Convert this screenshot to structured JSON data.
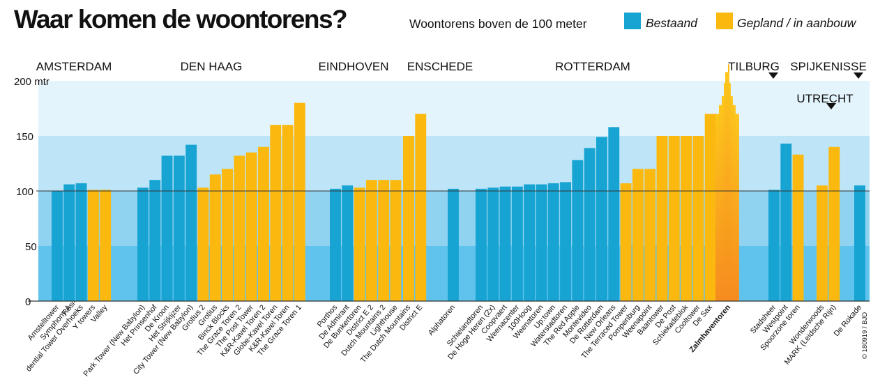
{
  "header": {
    "title": "Waar komen de woontorens?",
    "legend_label": "Woontorens boven de 100 meter"
  },
  "colors": {
    "existing": "#17a4d3",
    "planned": "#fbb90f",
    "band_top": "#e4f4fc",
    "band_mid": "#bde5f7",
    "band_low": "#8fd3f1",
    "band_bottom": "#5fc3ed",
    "highlight_top": "#fdc61c",
    "highlight_bottom": "#f68b1f"
  },
  "chart_data": {
    "type": "bar",
    "title": "Waar komen de woontorens?",
    "subtitle": "Woontorens boven de 100 meter",
    "ylabel": "",
    "ylim": [
      0,
      200
    ],
    "yticks": [
      "0",
      "50",
      "100",
      "150",
      "200 mtr"
    ],
    "grid": true,
    "legend_position": "top-right",
    "series": [
      {
        "name": "Bestaand",
        "key": "existing"
      },
      {
        "name": "Gepland / in aanbouw",
        "key": "planned"
      }
    ],
    "cities": [
      {
        "name": "AMSTERDAM",
        "marker": false,
        "buildings": [
          {
            "name": "Amstelltower",
            "value": 100,
            "status": "existing"
          },
          {
            "name": "Symphony A",
            "value": 106,
            "status": "existing"
          },
          {
            "name": "Resi-\ndential Tower Overhoeks",
            "value": 107,
            "status": "existing"
          },
          {
            "name": "Y towers",
            "value": 101,
            "status": "planned"
          },
          {
            "name": "Valley",
            "value": 101,
            "status": "planned"
          }
        ]
      },
      {
        "name": "DEN HAAG",
        "marker": false,
        "buildings": [
          {
            "name": "Park Tower (New Babylon)",
            "value": 103,
            "status": "existing"
          },
          {
            "name": "Het Prinsenhof",
            "value": 110,
            "status": "existing"
          },
          {
            "name": "De Kroon",
            "value": 132,
            "status": "existing"
          },
          {
            "name": "Het Strijkijzer",
            "value": 132,
            "status": "existing"
          },
          {
            "name": "City Tower (New Babylon)",
            "value": 142,
            "status": "existing"
          },
          {
            "name": "Grotius 2",
            "value": 103,
            "status": "planned"
          },
          {
            "name": "Grotius",
            "value": 115,
            "status": "planned"
          },
          {
            "name": "Binck Blocks",
            "value": 120,
            "status": "planned"
          },
          {
            "name": "The Grace Toren 2",
            "value": 132,
            "status": "planned"
          },
          {
            "name": "The Post Tower",
            "value": 135,
            "status": "planned"
          },
          {
            "name": "K&R-Kavel Toren 2",
            "value": 140,
            "status": "planned"
          },
          {
            "name": "Globe-Kavel Toren",
            "value": 160,
            "status": "planned"
          },
          {
            "name": "K&R-Kavel Toren",
            "value": 160,
            "status": "planned"
          },
          {
            "name": "The Grace Toren 1",
            "value": 180,
            "status": "planned"
          }
        ]
      },
      {
        "name": "EINDHOVEN",
        "marker": false,
        "buildings": [
          {
            "name": "Porthos",
            "value": 102,
            "status": "existing"
          },
          {
            "name": "De Admirant",
            "value": 105,
            "status": "existing"
          },
          {
            "name": "De Bunkertoren",
            "value": 103,
            "status": "planned"
          },
          {
            "name": "District E 2",
            "value": 110,
            "status": "planned"
          },
          {
            "name": "Dutch Mountains 2",
            "value": 110,
            "status": "planned"
          },
          {
            "name": "Lighthouse",
            "value": 110,
            "status": "planned"
          }
        ]
      },
      {
        "name": "ENSCHEDE",
        "marker": false,
        "buildings": [
          {
            "name": "The Dutch Mountains",
            "value": 150,
            "status": "planned"
          },
          {
            "name": "District E",
            "value": 170,
            "status": "planned"
          }
        ]
      },
      {
        "name": "",
        "marker": false,
        "buildings": [
          {
            "name": "Alphatoren",
            "value": 102,
            "status": "existing"
          }
        ]
      },
      {
        "name": "ROTTERDAM",
        "marker": false,
        "buildings": [
          {
            "name": "Schielandtoren",
            "value": 102,
            "status": "existing"
          },
          {
            "name": "De Hoge Heren (2x)",
            "value": 103,
            "status": "existing"
          },
          {
            "name": "Coopvaert",
            "value": 104,
            "status": "existing"
          },
          {
            "name": "Weenacenter",
            "value": 104,
            "status": "existing"
          },
          {
            "name": "100Hoog",
            "value": 106,
            "status": "existing"
          },
          {
            "name": "Weenatoren",
            "value": 106,
            "status": "existing"
          },
          {
            "name": "Up:town",
            "value": 107,
            "status": "existing"
          },
          {
            "name": "Waterstadtoren",
            "value": 108,
            "status": "existing"
          },
          {
            "name": "The Red Apple",
            "value": 128,
            "status": "existing"
          },
          {
            "name": "Montevideo",
            "value": 139,
            "status": "existing"
          },
          {
            "name": "De Rotterdam",
            "value": 149,
            "status": "existing"
          },
          {
            "name": "New Orleans",
            "value": 158,
            "status": "existing"
          },
          {
            "name": "The Terraced Tower",
            "value": 107,
            "status": "planned"
          },
          {
            "name": "Pompenburg",
            "value": 120,
            "status": "planned"
          },
          {
            "name": "Weenapoint",
            "value": 120,
            "status": "planned"
          },
          {
            "name": "Baantower",
            "value": 150,
            "status": "planned"
          },
          {
            "name": "De Post",
            "value": 150,
            "status": "planned"
          },
          {
            "name": "Schiekadeblok",
            "value": 150,
            "status": "planned"
          },
          {
            "name": "Cooltower",
            "value": 150,
            "status": "planned"
          },
          {
            "name": "De Sax",
            "value": 170,
            "status": "planned"
          },
          {
            "name": "Zalmhaventoren",
            "value": 215,
            "status": "planned",
            "highlight": true
          }
        ]
      },
      {
        "name": "TILBURG",
        "marker": true,
        "buildings": [
          {
            "name": "Stadsheer",
            "value": 101,
            "status": "existing"
          },
          {
            "name": "Westpoint",
            "value": 143,
            "status": "existing"
          },
          {
            "name": "Spoorzone toren",
            "value": 133,
            "status": "planned"
          }
        ]
      },
      {
        "name": "UTRECHT",
        "marker": true,
        "buildings": [
          {
            "name": "Wonderwoods",
            "value": 105,
            "status": "planned"
          },
          {
            "name": "MARK (Leidsche Rijn)",
            "value": 140,
            "status": "planned"
          }
        ]
      },
      {
        "name": "SPIJKENISSE",
        "marker": true,
        "buildings": [
          {
            "name": "De Rokade",
            "value": 105,
            "status": "existing"
          }
        ]
      }
    ],
    "credit": "© 180919 / BJD"
  }
}
